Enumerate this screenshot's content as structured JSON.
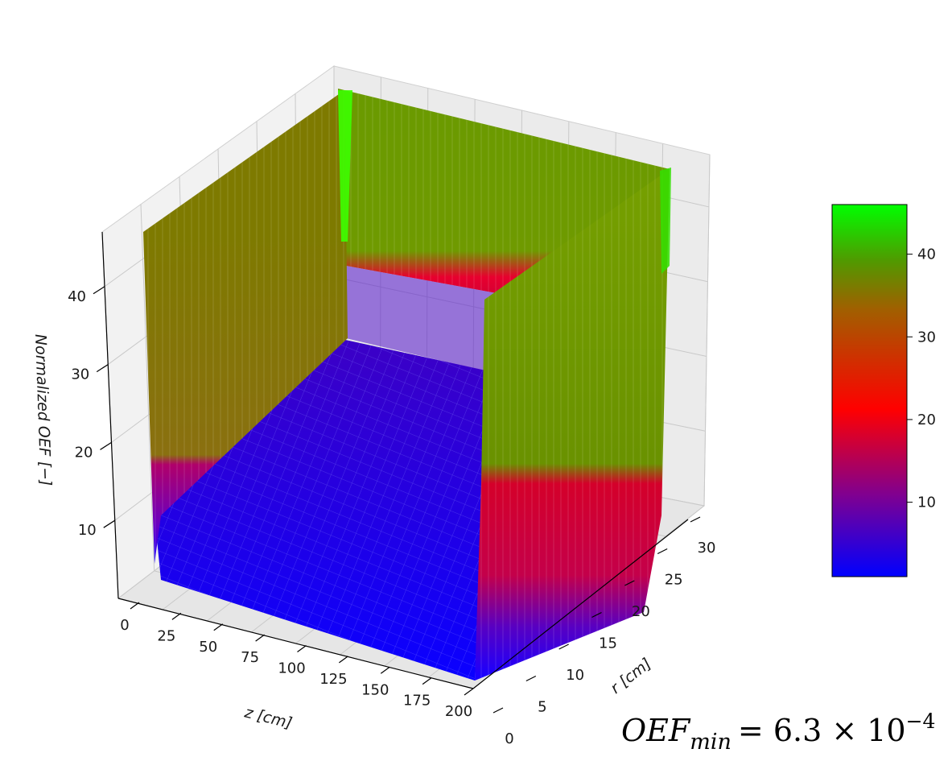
{
  "chart_data": {
    "type": "surface3d",
    "title": "",
    "axes": {
      "x": {
        "label": "z   [cm]",
        "range": [
          0,
          200
        ],
        "ticks": [
          "0",
          "25",
          "50",
          "75",
          "100",
          "125",
          "150",
          "175",
          "200"
        ]
      },
      "y": {
        "label": "r   [cm]",
        "range": [
          0,
          30
        ],
        "ticks": [
          "0",
          "5",
          "10",
          "15",
          "20",
          "25",
          "30"
        ]
      },
      "z": {
        "label": "Normalized   OEF   [−]",
        "range": [
          0,
          47
        ],
        "ticks": [
          "10",
          "20",
          "30",
          "40"
        ]
      }
    },
    "surface": {
      "description_values": {
        "interior_min": 1.0,
        "corner_max": 47,
        "boundary_z0_value": 37,
        "boundary_z200_value": 37,
        "boundary_r30_value": 40
      }
    },
    "colorbar": {
      "ticks": [
        "10",
        "20",
        "30",
        "40"
      ],
      "range": [
        1,
        46
      ],
      "colors": [
        "#0000ff",
        "#ff0000",
        "#00ff00"
      ]
    },
    "annotation": {
      "lhs": "OEF",
      "subscript": "min",
      "rhs": "= 6.3 × 10",
      "exponent": "−4"
    },
    "grid": true
  }
}
